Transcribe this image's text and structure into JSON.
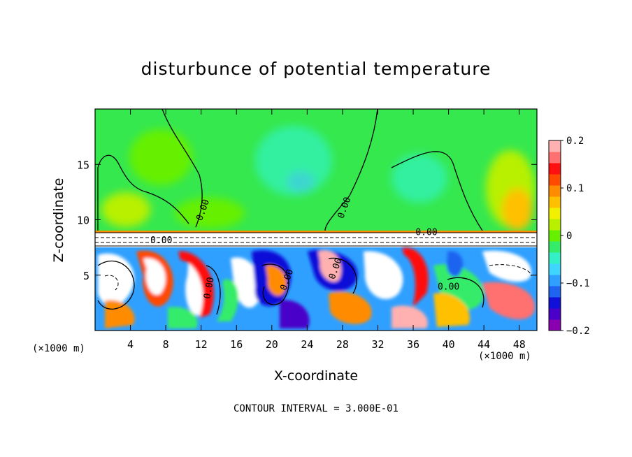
{
  "chart_data": {
    "type": "heatmap",
    "title": "disturbunce of potential temperature",
    "xlabel": "X-coordinate",
    "ylabel": "Z-coordinate",
    "x_unit_label": "(×1000 m)",
    "x_ticks": [
      4,
      8,
      12,
      16,
      20,
      24,
      28,
      32,
      36,
      40,
      44,
      48
    ],
    "y_ticks": [
      5,
      10,
      15
    ],
    "xlim": [
      0,
      50
    ],
    "ylim": [
      0,
      20
    ],
    "colorbar": {
      "ticks": [
        "0.2",
        "0.1",
        "0",
        "−0.1",
        "−0.2"
      ],
      "vmin": -0.2,
      "vmax": 0.2,
      "colors": [
        "#8a00b0",
        "#4a00c8",
        "#1010d8",
        "#1e64f0",
        "#2fa0ff",
        "#3ed6ff",
        "#33f0c8",
        "#35ec6a",
        "#66f000",
        "#b8f000",
        "#f0f000",
        "#ffc000",
        "#ff8c00",
        "#ff4a00",
        "#ff1010",
        "#ff7070",
        "#ffb0b0"
      ]
    },
    "contour_labels": [
      "0.00",
      "0.00",
      "0.00",
      "0.00",
      "0.00",
      "0.00",
      "0.00",
      "0.00"
    ],
    "contour_interval_text": "CONTOUR INTERVAL = 3.000E-01"
  }
}
